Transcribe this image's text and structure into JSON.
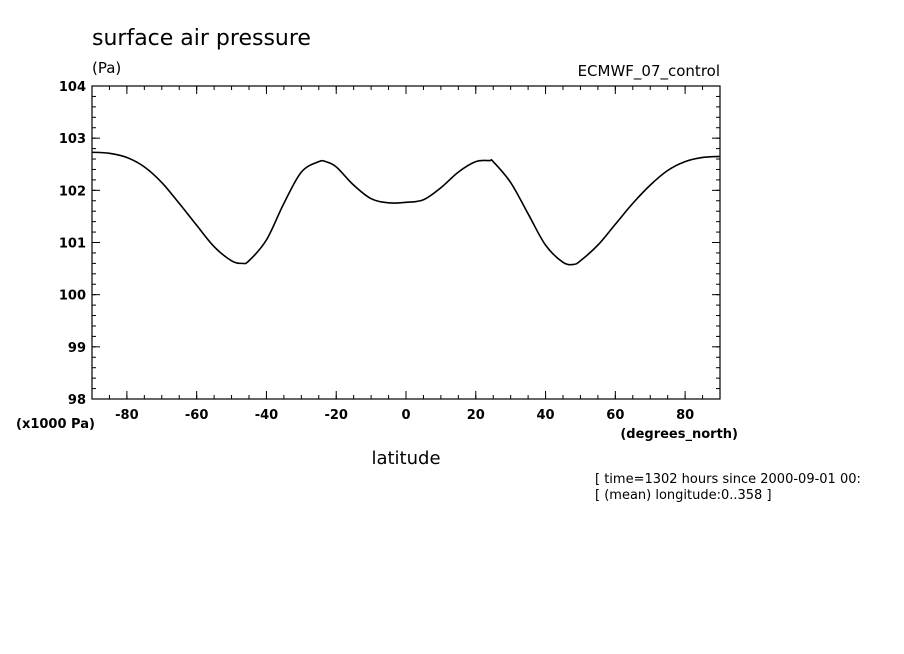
{
  "chart_data": {
    "type": "line",
    "title": "surface air pressure",
    "units_label": "(Pa)",
    "dataset_label": "ECMWF_07_control",
    "xlabel": "latitude",
    "x_units_label": "(degrees_north)",
    "y_scale_label": "(x1000 Pa)",
    "xlim": [
      -90,
      90
    ],
    "ylim": [
      98,
      104
    ],
    "x_ticks": [
      -80,
      -60,
      -40,
      -20,
      0,
      20,
      40,
      60,
      80
    ],
    "x_tick_labels": [
      "-80",
      "-60",
      "-40",
      "-20",
      "0",
      "20",
      "40",
      "60",
      "80"
    ],
    "y_ticks": [
      98,
      99,
      100,
      101,
      102,
      103,
      104
    ],
    "y_tick_labels": [
      "98",
      "99",
      "100",
      "101",
      "102",
      "103",
      "104"
    ],
    "info_lines": [
      "[ time=1302 hours since 2000-09-01 00:",
      "[ (mean) longitude:0..358 ]"
    ],
    "series": [
      {
        "x": [
          -90,
          -85,
          -80,
          -75,
          -70,
          -65,
          -60,
          -55,
          -50,
          -47,
          -45,
          -40,
          -35,
          -30,
          -25,
          -23,
          -20,
          -15,
          -10,
          -5,
          0,
          5,
          10,
          15,
          20,
          24,
          25,
          30,
          35,
          40,
          45,
          48,
          50,
          55,
          60,
          65,
          70,
          75,
          80,
          85,
          90
        ],
        "y": [
          102.73,
          102.71,
          102.63,
          102.45,
          102.15,
          101.75,
          101.33,
          100.92,
          100.65,
          100.6,
          100.65,
          101.05,
          101.75,
          102.35,
          102.55,
          102.55,
          102.45,
          102.1,
          101.84,
          101.76,
          101.77,
          101.82,
          102.05,
          102.35,
          102.55,
          102.57,
          102.55,
          102.15,
          101.55,
          100.95,
          100.62,
          100.58,
          100.65,
          100.95,
          101.35,
          101.75,
          102.1,
          102.38,
          102.55,
          102.63,
          102.65
        ]
      }
    ]
  }
}
